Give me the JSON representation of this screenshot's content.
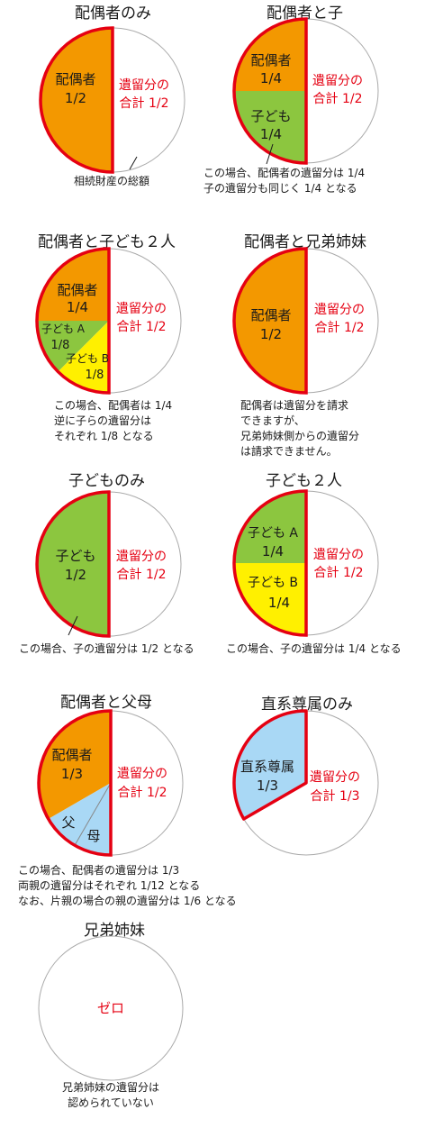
{
  "colors": {
    "spouse": "#f39800",
    "child": "#8cc63f",
    "child_b": "#fff000",
    "parent": "#a9d8f5",
    "outline": "#e50012",
    "reserve_text": "#e50012",
    "circle": "#aaaaaa"
  },
  "panels": [
    {
      "title": "配偶者のみ",
      "slices": [
        {
          "label": "配偶者",
          "value": "1/2"
        }
      ],
      "reserve": {
        "line1": "遺留分の",
        "line2": "合計 1/2"
      },
      "note": [
        "相続財産の総額"
      ]
    },
    {
      "title": "配偶者と子",
      "slices": [
        {
          "label": "配偶者",
          "value": "1/4"
        },
        {
          "label": "子ども",
          "value": "1/4"
        }
      ],
      "reserve": {
        "line1": "遺留分の",
        "line2": "合計 1/2"
      },
      "note": [
        "この場合、配偶者の遺留分は 1/4",
        "子の遺留分も同じく 1/4 となる"
      ]
    },
    {
      "title": "配偶者と子ども２人",
      "slices": [
        {
          "label": "配偶者",
          "value": "1/4"
        },
        {
          "label": "子ども A",
          "value": "1/8"
        },
        {
          "label": "子ども B",
          "value": "1/8"
        }
      ],
      "reserve": {
        "line1": "遺留分の",
        "line2": "合計 1/2"
      },
      "note": [
        "この場合、配偶者は 1/4",
        "逆に子らの遺留分は",
        "それぞれ 1/8 となる"
      ]
    },
    {
      "title": "配偶者と兄弟姉妹",
      "slices": [
        {
          "label": "配偶者",
          "value": "1/2"
        }
      ],
      "reserve": {
        "line1": "遺留分の",
        "line2": "合計 1/2"
      },
      "note": [
        "配偶者は遺留分を請求",
        "できますが、",
        "兄弟姉妹側からの遺留分",
        "は請求できません。"
      ]
    },
    {
      "title": "子どものみ",
      "slices": [
        {
          "label": "子ども",
          "value": "1/2"
        }
      ],
      "reserve": {
        "line1": "遺留分の",
        "line2": "合計 1/2"
      },
      "note": [
        "この場合、子の遺留分は 1/2 となる"
      ]
    },
    {
      "title": "子ども２人",
      "slices": [
        {
          "label": "子ども A",
          "value": "1/4"
        },
        {
          "label": "子ども B",
          "value": "1/4"
        }
      ],
      "reserve": {
        "line1": "遺留分の",
        "line2": "合計 1/2"
      },
      "note": [
        "この場合、子の遺留分は 1/4 となる"
      ]
    },
    {
      "title": "配偶者と父母",
      "slices": [
        {
          "label": "配偶者",
          "value": "1/3"
        },
        {
          "label": "父",
          "value": ""
        },
        {
          "label": "母",
          "value": ""
        }
      ],
      "reserve": {
        "line1": "遺留分の",
        "line2": "合計 1/2"
      },
      "note": [
        "この場合、配偶者の遺留分は 1/3",
        "両親の遺留分はそれぞれ 1/12 となる",
        "なお、片親の場合の親の遺留分は 1/6 となる"
      ]
    },
    {
      "title": "直系尊属のみ",
      "slices": [
        {
          "label": "直系尊属",
          "value": "1/3"
        }
      ],
      "reserve": {
        "line1": "遺留分の",
        "line2": "合計 1/3"
      },
      "note": []
    },
    {
      "title": "兄弟姉妹",
      "center": "ゼロ",
      "note": [
        "兄弟姉妹の遺留分は",
        "認められていない"
      ]
    }
  ]
}
